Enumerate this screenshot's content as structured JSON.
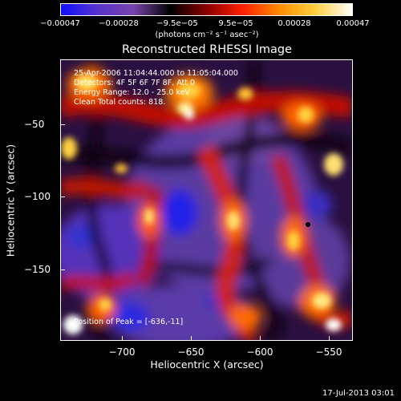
{
  "colorbar": {
    "tick_labels": [
      "−0.00047",
      "−0.00028",
      "−9.5e−05",
      "9.5e−05",
      "0.00028",
      "0.00047"
    ],
    "unit_label": "(photons cm⁻² s⁻¹ asec⁻²)",
    "colors": [
      "#1010ff",
      "#5533cc",
      "#7744aa",
      "#000000",
      "#8a0000",
      "#ff2000",
      "#ff8c00",
      "#ffd040",
      "#ffffff"
    ]
  },
  "title": "Reconstructed RHESSI Image",
  "info": {
    "line1": "25-Apr-2006 11:04:44.000 to 11:05:04.000",
    "line2": "Detectors: 4F 5F 6F 7F 8F, Att 0",
    "line3": "Energy Range: 12.0 - 25.0 keV",
    "line4": "Clean    Total counts: 818.",
    "peak": "Position of Peak = [-636,-11]"
  },
  "axes": {
    "xlabel": "Heliocentric X (arcsec)",
    "ylabel": "Heliocentric Y (arcsec)",
    "xticks": [
      "−700",
      "−650",
      "−600",
      "−550"
    ],
    "yticks": [
      "−50",
      "−100",
      "−150"
    ]
  },
  "datestamp": "17-Jul-2013 03:01"
}
